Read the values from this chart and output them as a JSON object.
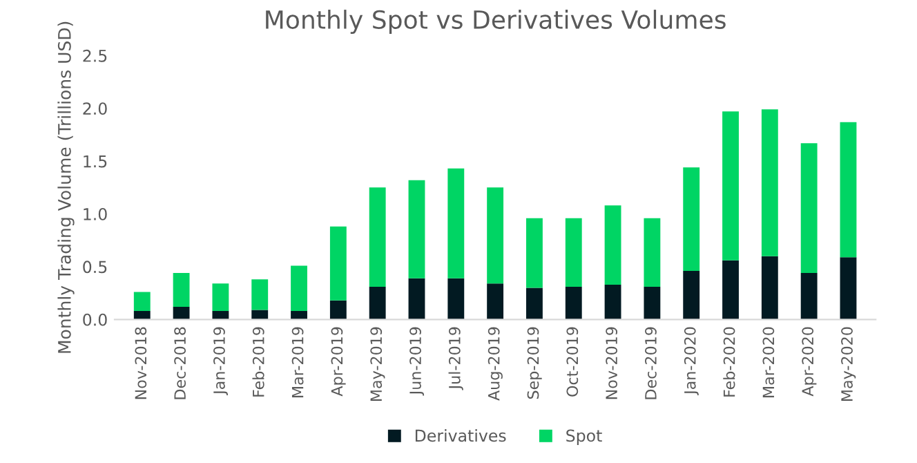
{
  "chart_data": {
    "type": "bar",
    "title": "Monthly Spot vs Derivatives Volumes",
    "ylabel": "Monthly Trading Volume (Trillions USD)",
    "categories": [
      "Nov-2018",
      "Dec-2018",
      "Jan-2019",
      "Feb-2019",
      "Mar-2019",
      "Apr-2019",
      "May-2019",
      "Jun-2019",
      "Jul-2019",
      "Aug-2019",
      "Sep-2019",
      "Oct-2019",
      "Nov-2019",
      "Dec-2019",
      "Jan-2020",
      "Feb-2020",
      "Mar-2020",
      "Apr-2020",
      "May-2020"
    ],
    "series": [
      {
        "name": "Derivatives",
        "color": "#021a22",
        "values": [
          0.08,
          0.12,
          0.08,
          0.09,
          0.08,
          0.18,
          0.31,
          0.39,
          0.39,
          0.34,
          0.3,
          0.31,
          0.33,
          0.31,
          0.46,
          0.56,
          0.6,
          0.44,
          0.59
        ]
      },
      {
        "name": "Spot",
        "color": "#00d564",
        "values": [
          0.18,
          0.32,
          0.26,
          0.29,
          0.43,
          0.7,
          0.94,
          0.93,
          1.04,
          0.91,
          0.66,
          0.65,
          0.75,
          0.65,
          0.98,
          1.41,
          1.39,
          1.23,
          1.28
        ]
      }
    ],
    "stacked": true,
    "ylim": [
      0,
      2.5
    ],
    "yticks": [
      {
        "value": 0,
        "label": "0.0"
      },
      {
        "value": 0.5,
        "label": "0.5"
      },
      {
        "value": 1,
        "label": "1.0"
      },
      {
        "value": 1.5,
        "label": "1.5"
      },
      {
        "value": 2,
        "label": "2.0"
      },
      {
        "value": 2.5,
        "label": "2.5"
      }
    ],
    "grid": false,
    "legend": "bottom"
  }
}
